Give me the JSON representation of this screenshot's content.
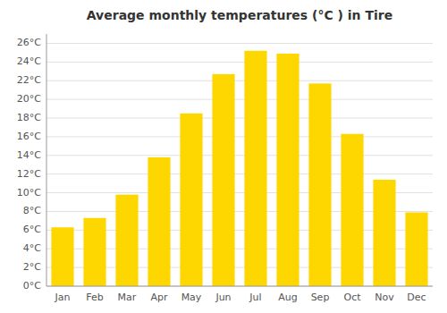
{
  "chart_data": {
    "type": "bar",
    "title": "Average monthly temperatures (°C ) in Tire",
    "categories": [
      "Jan",
      "Feb",
      "Mar",
      "Apr",
      "May",
      "Jun",
      "Jul",
      "Aug",
      "Sep",
      "Oct",
      "Nov",
      "Dec"
    ],
    "values": [
      6.3,
      7.3,
      9.8,
      13.8,
      18.5,
      22.7,
      25.2,
      24.9,
      21.7,
      16.3,
      11.4,
      7.9
    ],
    "color": "#FFD700",
    "ylim": [
      0,
      27
    ],
    "yticks": [
      {
        "value": 0,
        "label": "0°C"
      },
      {
        "value": 2,
        "label": "2°C"
      },
      {
        "value": 4,
        "label": "4°C"
      },
      {
        "value": 6,
        "label": "6°C"
      },
      {
        "value": 8,
        "label": "8°C"
      },
      {
        "value": 10,
        "label": "10°C"
      },
      {
        "value": 12,
        "label": "12°C"
      },
      {
        "value": 14,
        "label": "14°C"
      },
      {
        "value": 16,
        "label": "16°C"
      },
      {
        "value": 18,
        "label": "18°C"
      },
      {
        "value": 20,
        "label": "20°C"
      },
      {
        "value": 22,
        "label": "22°C"
      },
      {
        "value": 24,
        "label": "24°C"
      },
      {
        "value": 26,
        "label": "26°C"
      }
    ],
    "grid": true
  }
}
